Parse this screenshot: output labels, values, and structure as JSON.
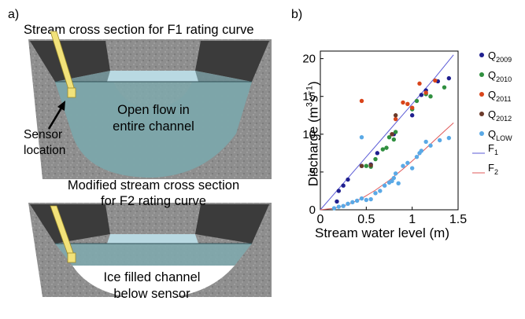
{
  "panels": {
    "a": {
      "label": "a)",
      "top_caption": "Stream cross section for F1 rating curve",
      "top_flow_line1": "Open flow in",
      "top_flow_line2": "entire channel",
      "sensor_line1": "Sensor",
      "sensor_line2": "location",
      "bottom_caption_line1": "Modified stream cross section",
      "bottom_caption_line2": "for F2 rating curve",
      "bottom_flow_line1": "Ice filled channel",
      "bottom_flow_line2": "below sensor"
    },
    "b": {
      "label": "b)"
    }
  },
  "colors": {
    "ground": "#8d8d8d",
    "bank": "#3a3a3a",
    "water": "#7fa9ad",
    "water_light": "#b9d9e2",
    "sensor": "#f2e27a",
    "q2009": "#1f1f8f",
    "q2010": "#2f8f3f",
    "q2011": "#d9441a",
    "q2012": "#6b3a2a",
    "qlow": "#5aa9e6",
    "f1": "#5b5bd6",
    "f2": "#e05a5a"
  },
  "chart_data": {
    "type": "scatter",
    "xlabel": "Stream water level (m)",
    "ylabel_main": "Discharge (m",
    "ylabel_sup1": "3",
    "ylabel_mid": "s",
    "ylabel_sup2": "−1",
    "ylabel_end": ")",
    "xlim": [
      0,
      1.5
    ],
    "ylim": [
      0,
      21
    ],
    "xticks": [
      "0",
      "0.5",
      "1",
      "1.5"
    ],
    "xtick_values": [
      0,
      0.5,
      1,
      1.5
    ],
    "yticks": [
      "0",
      "5",
      "10",
      "15",
      "20"
    ],
    "ytick_values": [
      0,
      5,
      10,
      15,
      20
    ],
    "legend_position": "right",
    "series": [
      {
        "name": "Q",
        "sub": "2009",
        "key": "q2009",
        "points": [
          [
            0.18,
            1.1
          ],
          [
            0.2,
            2.5
          ],
          [
            0.25,
            3.2
          ],
          [
            0.3,
            4.0
          ],
          [
            0.45,
            5.8
          ],
          [
            0.55,
            6.0
          ],
          [
            0.62,
            7.5
          ],
          [
            0.8,
            10.0
          ],
          [
            1.0,
            12.5
          ],
          [
            1.1,
            15.2
          ],
          [
            1.15,
            15.8
          ],
          [
            1.28,
            17.0
          ],
          [
            1.4,
            17.4
          ]
        ]
      },
      {
        "name": "Q",
        "sub": "2010",
        "key": "q2010",
        "points": [
          [
            0.5,
            5.8
          ],
          [
            0.55,
            5.7
          ],
          [
            0.6,
            6.7
          ],
          [
            0.68,
            8.0
          ],
          [
            0.72,
            8.2
          ],
          [
            0.75,
            9.6
          ],
          [
            0.8,
            9.3
          ],
          [
            0.82,
            10.3
          ],
          [
            1.0,
            13.3
          ],
          [
            1.05,
            14.4
          ],
          [
            1.15,
            15.3
          ],
          [
            1.2,
            15.0
          ],
          [
            1.35,
            16.2
          ]
        ]
      },
      {
        "name": "Q",
        "sub": "2011",
        "key": "q2011",
        "points": [
          [
            0.45,
            14.4
          ],
          [
            0.78,
            10.0
          ],
          [
            0.82,
            12.0
          ],
          [
            0.9,
            14.2
          ],
          [
            0.95,
            14.0
          ],
          [
            1.0,
            13.5
          ],
          [
            1.08,
            16.7
          ],
          [
            1.15,
            15.5
          ],
          [
            1.25,
            17.1
          ]
        ]
      },
      {
        "name": "Q",
        "sub": "2012",
        "key": "q2012",
        "points": [
          [
            0.45,
            5.8
          ],
          [
            0.55,
            5.9
          ],
          [
            0.78,
            10.0
          ],
          [
            0.82,
            12.5
          ]
        ]
      },
      {
        "name": "Q",
        "sub": "LOW",
        "key": "qlow",
        "points": [
          [
            0.15,
            0.2
          ],
          [
            0.2,
            0.4
          ],
          [
            0.25,
            0.5
          ],
          [
            0.3,
            0.8
          ],
          [
            0.35,
            1.0
          ],
          [
            0.4,
            1.2
          ],
          [
            0.45,
            1.5
          ],
          [
            0.45,
            9.6
          ],
          [
            0.5,
            1.3
          ],
          [
            0.55,
            1.4
          ],
          [
            0.6,
            2.2
          ],
          [
            0.65,
            2.5
          ],
          [
            0.7,
            3.2
          ],
          [
            0.75,
            3.6
          ],
          [
            0.78,
            3.8
          ],
          [
            0.8,
            4.2
          ],
          [
            0.82,
            4.8
          ],
          [
            0.85,
            3.5
          ],
          [
            0.9,
            5.8
          ],
          [
            0.95,
            6.2
          ],
          [
            1.0,
            5.5
          ],
          [
            1.05,
            7.0
          ],
          [
            1.08,
            7.5
          ],
          [
            1.1,
            7.8
          ],
          [
            1.15,
            9.0
          ],
          [
            1.2,
            8.5
          ],
          [
            1.3,
            9.2
          ],
          [
            1.4,
            9.5
          ]
        ]
      }
    ],
    "curves": [
      {
        "name": "F",
        "sub": "1",
        "key": "f1",
        "points": [
          [
            0,
            0
          ],
          [
            0.25,
            3.5
          ],
          [
            0.5,
            7.0
          ],
          [
            0.75,
            10.5
          ],
          [
            1.0,
            14.0
          ],
          [
            1.25,
            17.5
          ],
          [
            1.45,
            20.5
          ]
        ]
      },
      {
        "name": "F",
        "sub": "2",
        "key": "f2",
        "points": [
          [
            0,
            0
          ],
          [
            0.15,
            0.2
          ],
          [
            0.3,
            0.7
          ],
          [
            0.45,
            1.5
          ],
          [
            0.6,
            2.6
          ],
          [
            0.75,
            3.9
          ],
          [
            0.9,
            5.4
          ],
          [
            1.05,
            7.0
          ],
          [
            1.2,
            8.7
          ],
          [
            1.35,
            10.4
          ],
          [
            1.45,
            11.5
          ]
        ]
      }
    ]
  }
}
